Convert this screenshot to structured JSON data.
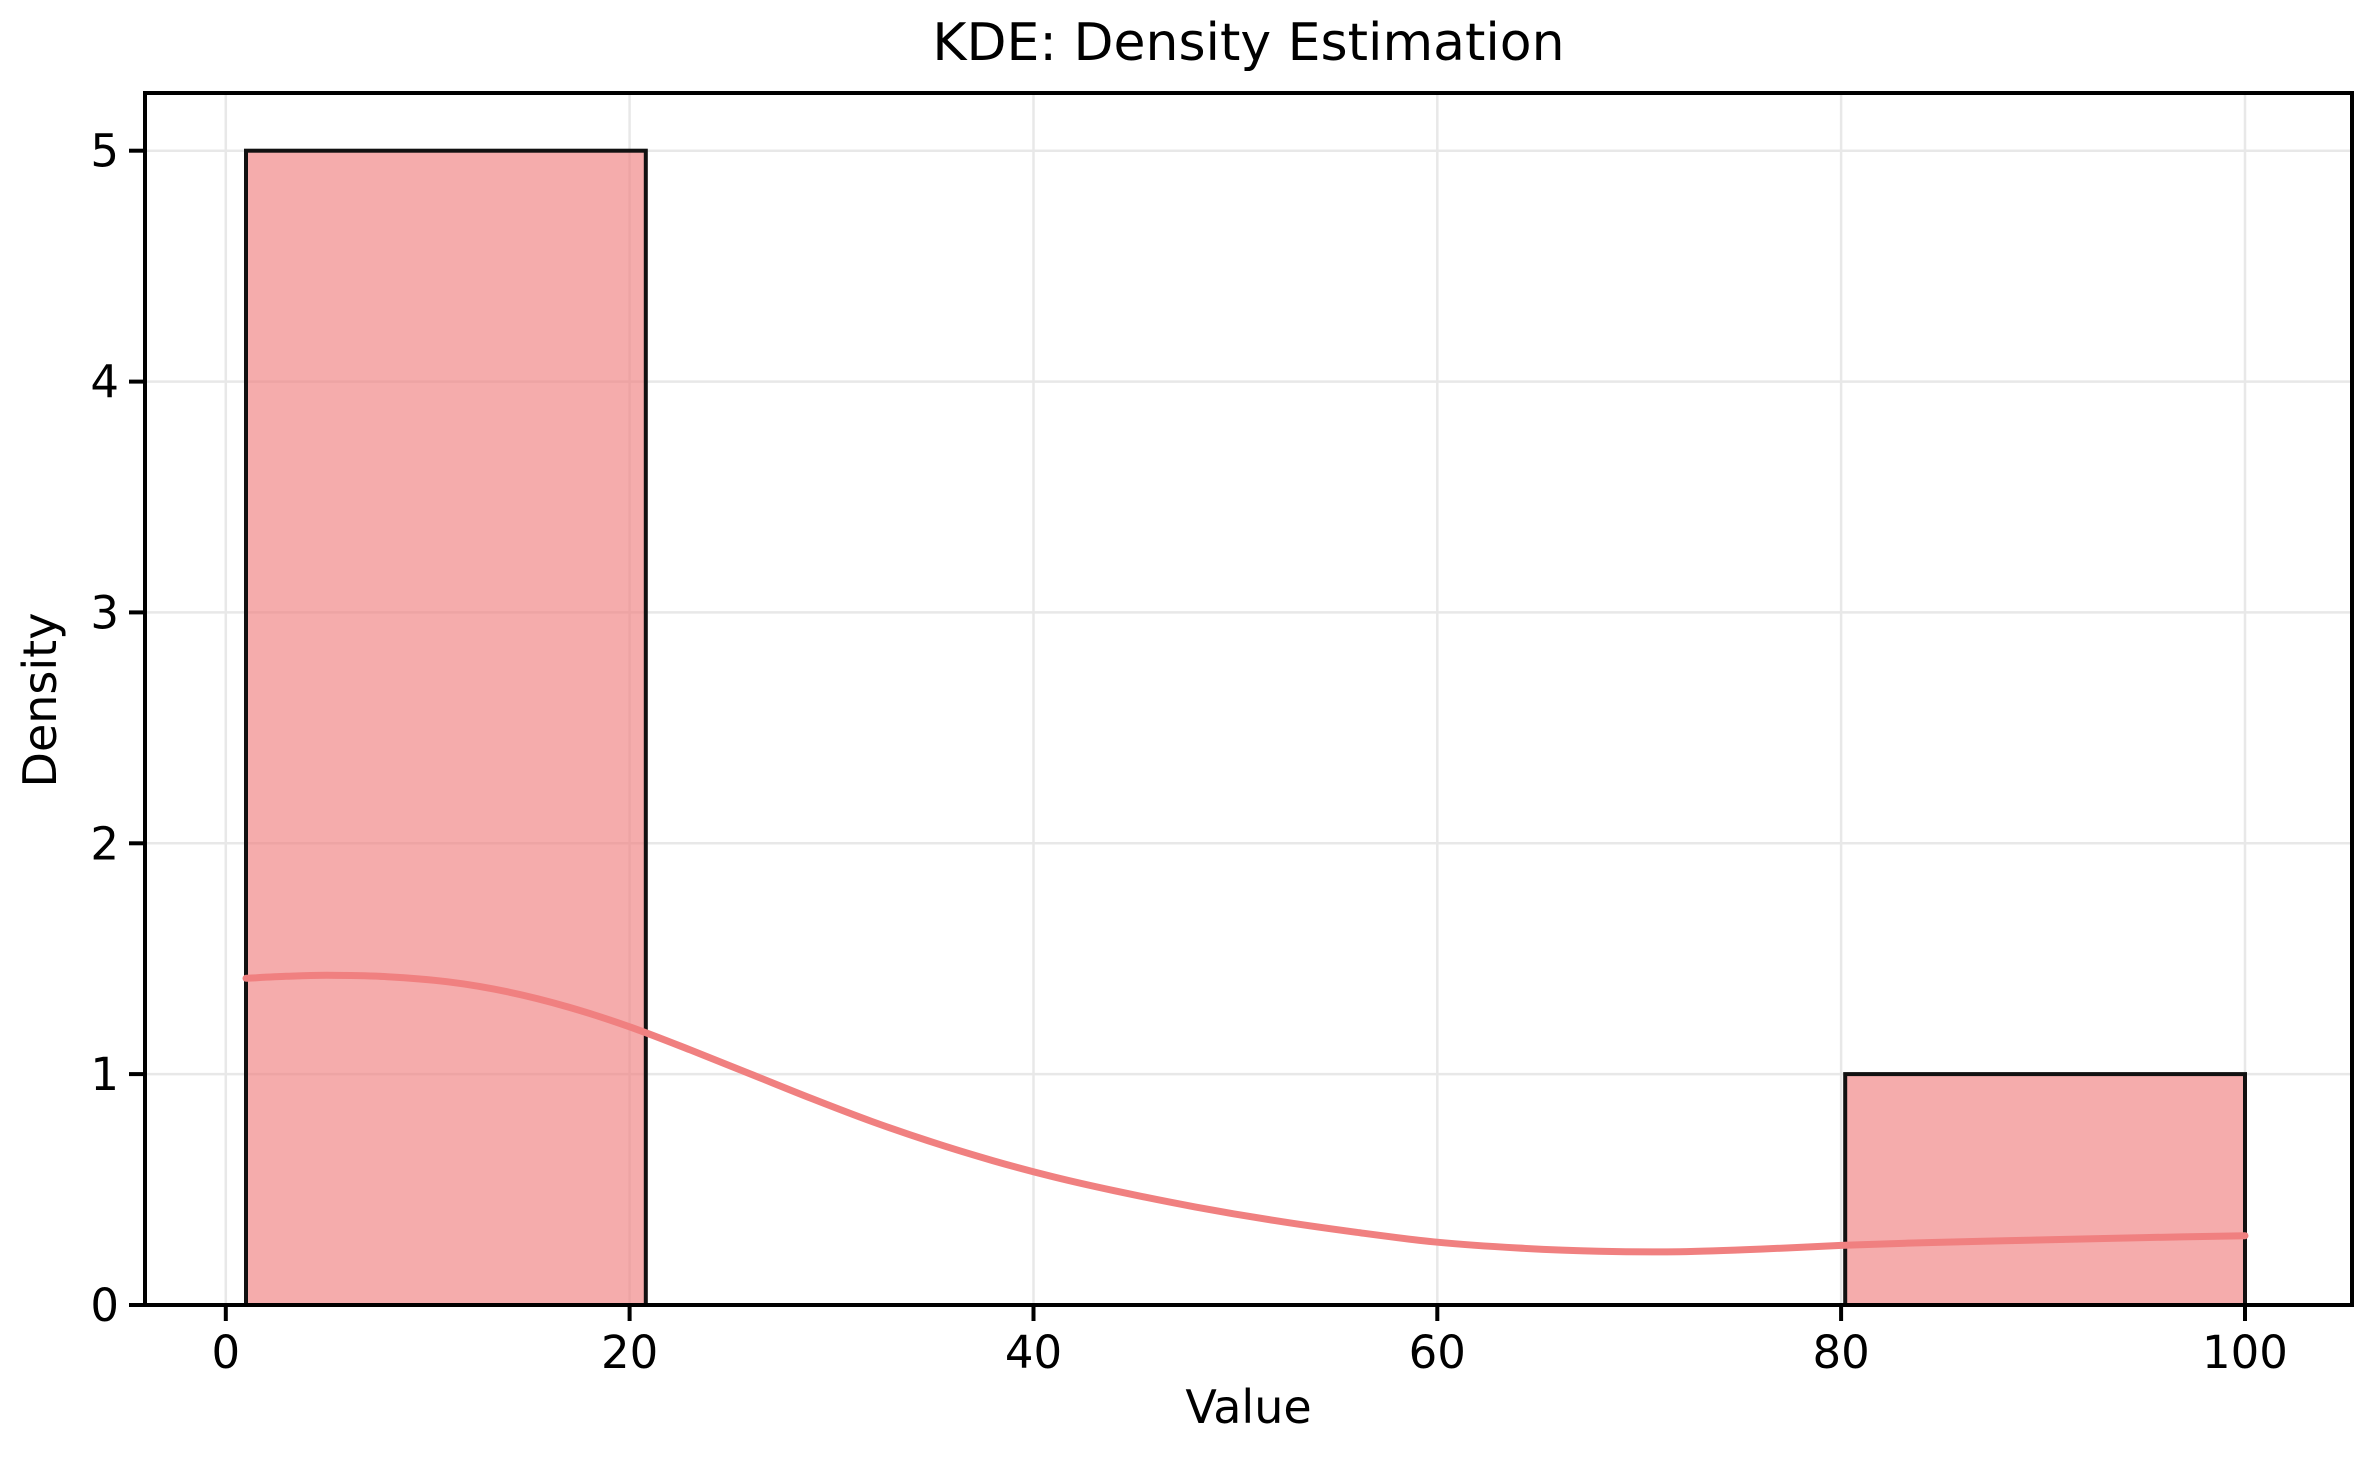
{
  "chart_data": {
    "type": "bar",
    "subtype": "histogram_with_kde_overlay",
    "title": "KDE: Density Estimation",
    "xlabel": "Value",
    "ylabel": "Density",
    "xlim": [
      -4.0,
      105.3
    ],
    "ylim": [
      0,
      5.25
    ],
    "x_ticks": [
      0,
      20,
      40,
      60,
      80,
      100
    ],
    "y_ticks": [
      0,
      1,
      2,
      3,
      4,
      5
    ],
    "grid": true,
    "legend": false,
    "bars": [
      {
        "x_start": 1.0,
        "x_end": 20.8,
        "height": 5
      },
      {
        "x_start": 80.2,
        "x_end": 100.0,
        "height": 1
      }
    ],
    "kde_curve": {
      "x": [
        1,
        3,
        5,
        8,
        11,
        14,
        17,
        20,
        23,
        26,
        29,
        32,
        35,
        38,
        41,
        44,
        48,
        52,
        56,
        60,
        64,
        68,
        72,
        76,
        80,
        85,
        90,
        95,
        100
      ],
      "y": [
        1.415,
        1.424,
        1.428,
        1.422,
        1.4,
        1.356,
        1.29,
        1.205,
        1.105,
        1.0,
        0.895,
        0.795,
        0.705,
        0.625,
        0.555,
        0.495,
        0.425,
        0.365,
        0.315,
        0.272,
        0.247,
        0.233,
        0.231,
        0.242,
        0.258,
        0.272,
        0.282,
        0.292,
        0.3
      ]
    },
    "colors": {
      "background": "#ffffff",
      "bar_fill": "rgba(240,128,128,0.65)",
      "bar_edge": "#111111",
      "kde_line": "#f08080",
      "grid": "#e8e8e8",
      "spine": "#000000",
      "text": "#000000"
    }
  }
}
